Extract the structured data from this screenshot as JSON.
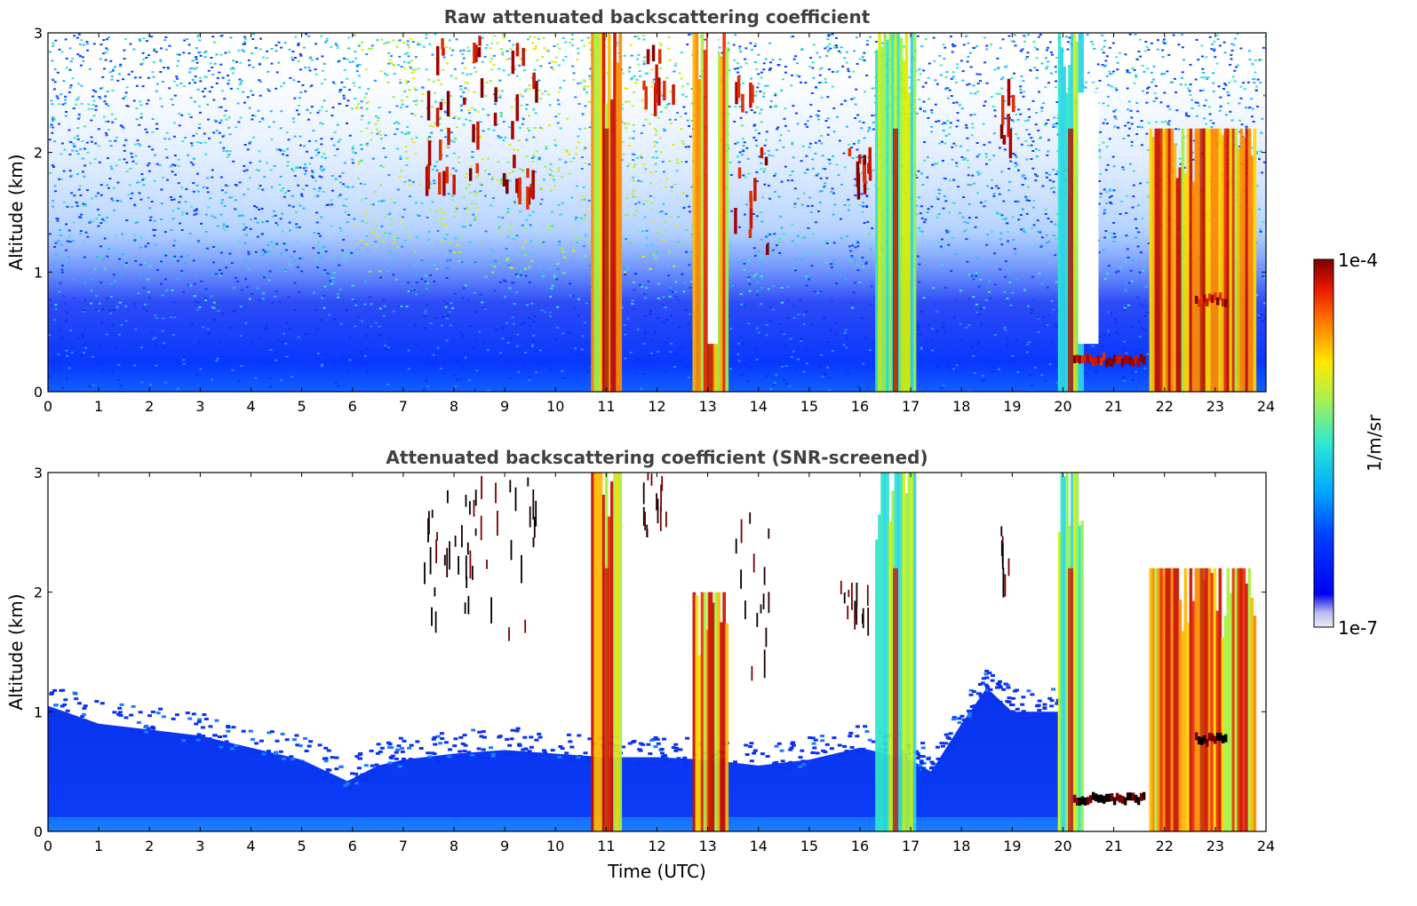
{
  "figure": {
    "xlabel": "Time (UTC)",
    "colorbar": {
      "label": "1/m/sr",
      "max_label": "1e-4",
      "min_label": "1e-7",
      "scale": "log",
      "range": [
        1e-07,
        0.0001
      ],
      "colormap": "jet"
    }
  },
  "chart_data": [
    {
      "type": "heatmap",
      "title": "Raw attenuated backscattering coefficient",
      "xlabel": "",
      "ylabel": "Altitude (km)",
      "xlim": [
        0,
        24
      ],
      "ylim": [
        0,
        3
      ],
      "xticks": [
        "0",
        "1",
        "2",
        "3",
        "4",
        "5",
        "6",
        "7",
        "8",
        "9",
        "10",
        "11",
        "12",
        "13",
        "14",
        "15",
        "16",
        "17",
        "18",
        "19",
        "20",
        "21",
        "22",
        "23",
        "24"
      ],
      "yticks": [
        "0",
        "1",
        "2",
        "3"
      ],
      "grid": false,
      "background_noise": "speckled noise increasing with altitude, dense blue below 0.6 km, greenish-yellow speckle above 1 km between 6 and 12 UTC",
      "features": [
        {
          "kind": "precip_column",
          "t_start": 10.7,
          "t_end": 11.3,
          "alt_bottom": 0,
          "alt_top": 3,
          "level": "high"
        },
        {
          "kind": "precip_column",
          "t_start": 12.7,
          "t_end": 13.4,
          "alt_bottom": 0,
          "alt_top": 3,
          "level": "high"
        },
        {
          "kind": "precip_column",
          "t_start": 16.3,
          "t_end": 17.1,
          "alt_bottom": 0,
          "alt_top": 3,
          "level": "medium"
        },
        {
          "kind": "precip_column",
          "t_start": 19.9,
          "t_end": 20.4,
          "alt_bottom": 0,
          "alt_top": 3,
          "level": "medium"
        },
        {
          "kind": "precip_column",
          "t_start": 21.7,
          "t_end": 23.8,
          "alt_bottom": 0,
          "alt_top": 2.2,
          "level": "high"
        },
        {
          "kind": "cloud_base_layer",
          "t_start": 20.2,
          "t_end": 21.6,
          "alt": 0.25,
          "level": "very_high"
        },
        {
          "kind": "elevated_cloud_layer",
          "t_start": 22.6,
          "t_end": 23.2,
          "alt": 0.75,
          "level": "very_high"
        },
        {
          "kind": "cloud_patches",
          "t_start": 7.4,
          "t_end": 9.6,
          "alt_bottom": 1.7,
          "alt_top": 3,
          "level": "very_high"
        },
        {
          "kind": "cloud_patches",
          "t_start": 11.7,
          "t_end": 12.3,
          "alt_bottom": 2.5,
          "alt_top": 3,
          "level": "very_high"
        },
        {
          "kind": "cloud_patches",
          "t_start": 13.5,
          "t_end": 14.2,
          "alt_bottom": 1.1,
          "alt_top": 2.7,
          "level": "very_high"
        },
        {
          "kind": "cloud_patches",
          "t_start": 15.6,
          "t_end": 16.2,
          "alt_bottom": 1.8,
          "alt_top": 2.1,
          "level": "very_high"
        },
        {
          "kind": "cloud_patches",
          "t_start": 18.7,
          "t_end": 19.0,
          "alt_bottom": 2.1,
          "alt_top": 2.7,
          "level": "very_high"
        },
        {
          "kind": "clear_gap",
          "t_start": 13.0,
          "t_end": 13.2,
          "alt_bottom": 0.4,
          "alt_top": 3
        },
        {
          "kind": "clear_gap",
          "t_start": 20.3,
          "t_end": 20.7,
          "alt_bottom": 0.4,
          "alt_top": 2.5
        }
      ]
    },
    {
      "type": "heatmap",
      "title": "Attenuated backscattering coefficient (SNR-screened)",
      "xlabel": "Time (UTC)",
      "ylabel": "Altitude (km)",
      "xlim": [
        0,
        24
      ],
      "ylim": [
        0,
        3
      ],
      "xticks": [
        "0",
        "1",
        "2",
        "3",
        "4",
        "5",
        "6",
        "7",
        "8",
        "9",
        "10",
        "11",
        "12",
        "13",
        "14",
        "15",
        "16",
        "17",
        "18",
        "19",
        "20",
        "21",
        "22",
        "23",
        "24"
      ],
      "yticks": [
        "0",
        "1",
        "2",
        "3"
      ],
      "grid": false,
      "boundary_layer_top_km": [
        [
          0,
          1.05
        ],
        [
          1,
          0.9
        ],
        [
          2,
          0.85
        ],
        [
          3,
          0.8
        ],
        [
          4,
          0.7
        ],
        [
          5,
          0.6
        ],
        [
          5.9,
          0.42
        ],
        [
          6.5,
          0.55
        ],
        [
          7,
          0.6
        ],
        [
          8,
          0.65
        ],
        [
          9,
          0.68
        ],
        [
          10,
          0.65
        ],
        [
          11,
          0.62
        ],
        [
          12,
          0.62
        ],
        [
          13,
          0.6
        ],
        [
          14,
          0.55
        ],
        [
          15,
          0.6
        ],
        [
          16,
          0.7
        ],
        [
          17,
          0.6
        ],
        [
          17.4,
          0.5
        ],
        [
          18,
          0.9
        ],
        [
          18.5,
          1.2
        ],
        [
          19,
          1.0
        ],
        [
          19.9,
          1.0
        ]
      ],
      "features": [
        {
          "kind": "precip_column",
          "t_start": 10.7,
          "t_end": 11.3,
          "alt_bottom": 0,
          "alt_top": 3,
          "level": "high"
        },
        {
          "kind": "precip_column",
          "t_start": 12.7,
          "t_end": 13.4,
          "alt_bottom": 0,
          "alt_top": 2.0,
          "level": "high"
        },
        {
          "kind": "precip_column",
          "t_start": 16.3,
          "t_end": 17.1,
          "alt_bottom": 0,
          "alt_top": 3,
          "level": "medium"
        },
        {
          "kind": "precip_column",
          "t_start": 19.9,
          "t_end": 20.4,
          "alt_bottom": 0,
          "alt_top": 3,
          "level": "medium"
        },
        {
          "kind": "precip_column",
          "t_start": 21.7,
          "t_end": 23.8,
          "alt_bottom": 0,
          "alt_top": 2.2,
          "level": "high"
        },
        {
          "kind": "cloud_base_layer",
          "t_start": 20.2,
          "t_end": 21.6,
          "alt": 0.25,
          "level": "saturated"
        },
        {
          "kind": "elevated_cloud_layer",
          "t_start": 22.6,
          "t_end": 23.2,
          "alt": 0.75,
          "level": "saturated"
        },
        {
          "kind": "cloud_patches",
          "t_start": 7.4,
          "t_end": 9.6,
          "alt_bottom": 1.7,
          "alt_top": 3,
          "level": "saturated"
        },
        {
          "kind": "cloud_patches",
          "t_start": 11.7,
          "t_end": 12.3,
          "alt_bottom": 2.5,
          "alt_top": 3,
          "level": "saturated"
        },
        {
          "kind": "cloud_patches",
          "t_start": 13.5,
          "t_end": 14.2,
          "alt_bottom": 1.1,
          "alt_top": 2.7,
          "level": "saturated"
        },
        {
          "kind": "cloud_patches",
          "t_start": 15.6,
          "t_end": 16.2,
          "alt_bottom": 1.8,
          "alt_top": 2.1,
          "level": "saturated"
        },
        {
          "kind": "cloud_patches",
          "t_start": 18.7,
          "t_end": 19.0,
          "alt_bottom": 2.1,
          "alt_top": 2.7,
          "level": "saturated"
        }
      ]
    }
  ],
  "colors": {
    "saturated": "#000000",
    "title": "#404040",
    "background": "#ffffff"
  }
}
